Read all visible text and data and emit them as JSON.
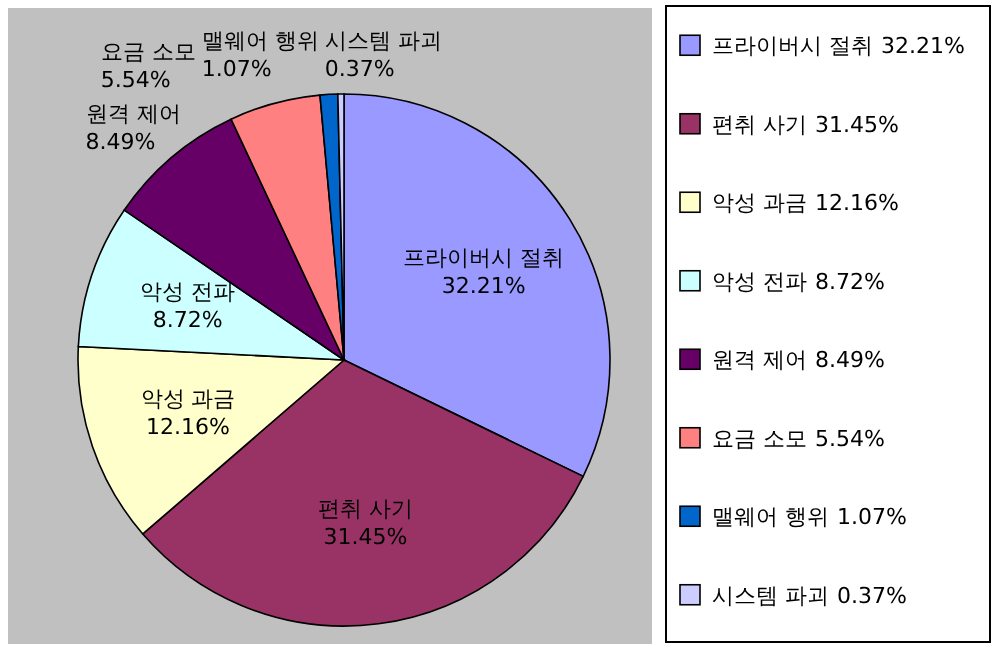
{
  "chart_data": {
    "type": "pie",
    "categories": [
      "프라이버시 절취",
      "편취 사기",
      "악성 과금",
      "악성 전파",
      "원격 제어",
      "요금 소모",
      "맬웨어 행위",
      "시스템 파괴"
    ],
    "values": [
      32.21,
      31.45,
      12.16,
      8.72,
      8.49,
      5.54,
      1.07,
      0.37
    ],
    "colors": [
      "#9999ff",
      "#993366",
      "#ffffcc",
      "#ccffff",
      "#660066",
      "#ff8080",
      "#0066cc",
      "#ccccff"
    ],
    "value_labels": [
      "32.21%",
      "31.45%",
      "12.16%",
      "8.72%",
      "8.49%",
      "5.54%",
      "1.07%",
      "0.37%"
    ],
    "legend": "right"
  }
}
